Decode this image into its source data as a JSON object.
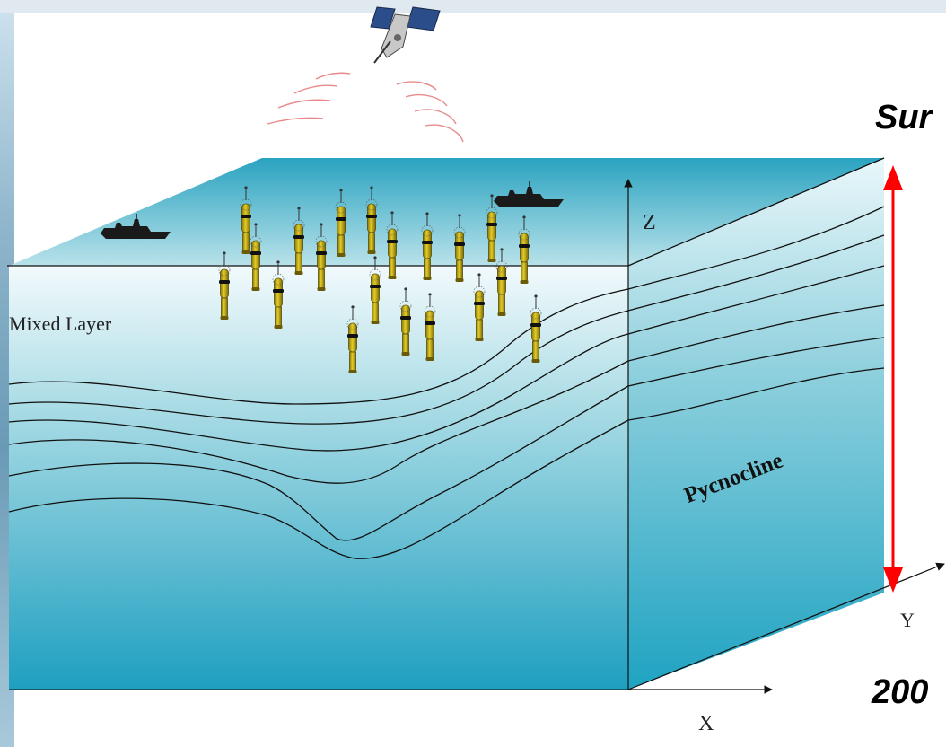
{
  "labels": {
    "surface_cut": "Sur",
    "depth_cut": "200",
    "mixed_layer": "Mixed Layer",
    "pycnocline": "Pycnocline",
    "axis_x": "X",
    "axis_y": "Y",
    "axis_z": "Z"
  },
  "colors": {
    "ocean_top": "#2ea7c2",
    "ocean_mid": "#9fd7e2",
    "ocean_bottom": "#2a9fbf",
    "depth_arrow": "#ff0000",
    "float_body": "#c9b21a",
    "signal": "#e88a8a",
    "ship": "#1a1a1a"
  },
  "icons": [
    "satellite-icon",
    "ship-icon",
    "argo-float-icon",
    "signal-wave-icon"
  ]
}
